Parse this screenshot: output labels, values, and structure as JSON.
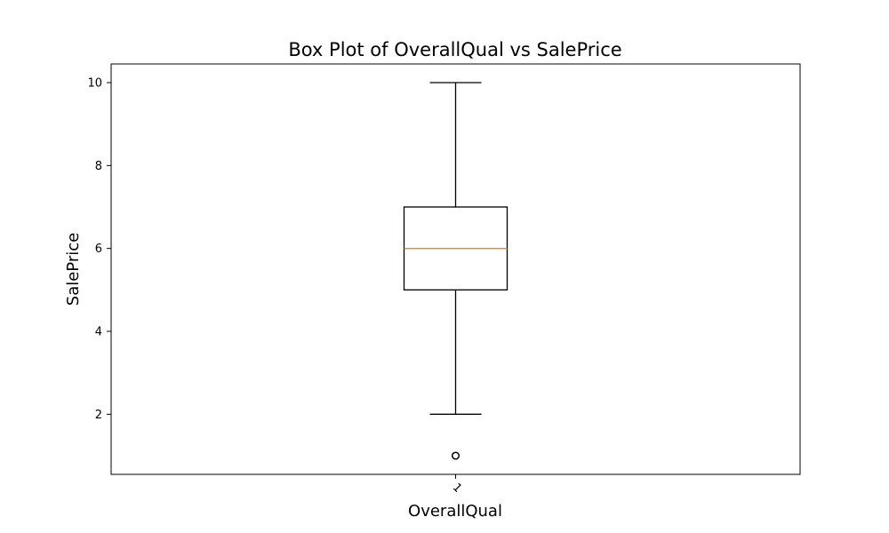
{
  "chart_data": {
    "type": "box",
    "title": "Box Plot of OverallQual vs SalePrice",
    "xlabel": "OverallQual",
    "ylabel": "SalePrice",
    "categories": [
      "1"
    ],
    "ylim": [
      0.55,
      10.45
    ],
    "yticks": [
      2,
      4,
      6,
      8,
      10
    ],
    "boxes": [
      {
        "category": "1",
        "whisker_low": 2,
        "q1": 5,
        "median": 6,
        "q3": 7,
        "whisker_high": 10,
        "outliers": [
          1
        ]
      }
    ],
    "grid": false,
    "colors": {
      "box": "#000000",
      "median": "#ff7f0e",
      "outlier": "#000000"
    }
  }
}
